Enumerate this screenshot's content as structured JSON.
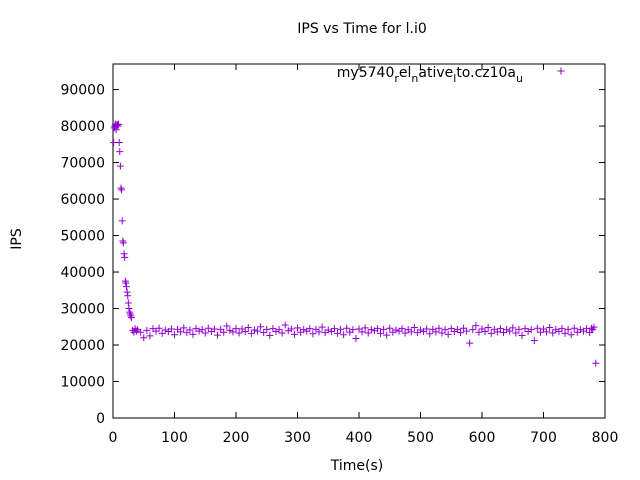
{
  "chart_data": {
    "type": "scatter",
    "title": "IPS vs Time for l.i0",
    "xlabel": "Time(s)",
    "ylabel": "IPS",
    "xlim": [
      0,
      800
    ],
    "ylim": [
      0,
      97000
    ],
    "x_ticks": [
      0,
      100,
      200,
      300,
      400,
      500,
      600,
      700,
      800
    ],
    "y_ticks": [
      0,
      10000,
      20000,
      30000,
      40000,
      50000,
      60000,
      70000,
      80000,
      90000
    ],
    "legend_placement": "top-right",
    "grid": false,
    "marker": "plus",
    "series": [
      {
        "name": "my5740_rel_native_lto.cz10a_u",
        "legend_parts": [
          {
            "text": "my5740",
            "sub": false
          },
          {
            "text": "r",
            "sub": true
          },
          {
            "text": "el",
            "sub": false
          },
          {
            "text": "n",
            "sub": true
          },
          {
            "text": "ative",
            "sub": false
          },
          {
            "text": "l",
            "sub": true
          },
          {
            "text": "to.cz10a",
            "sub": false
          },
          {
            "text": "u",
            "sub": true
          }
        ],
        "color": "#9400d3",
        "points": [
          [
            1,
            75500
          ],
          [
            2,
            79500
          ],
          [
            3,
            80000
          ],
          [
            4,
            80500
          ],
          [
            5,
            79000
          ],
          [
            6,
            80200
          ],
          [
            7,
            80400
          ],
          [
            8,
            80000
          ],
          [
            9,
            80500
          ],
          [
            10,
            75500
          ],
          [
            11,
            73000
          ],
          [
            12,
            69000
          ],
          [
            13,
            63000
          ],
          [
            14,
            62500
          ],
          [
            15,
            54000
          ],
          [
            16,
            48500
          ],
          [
            17,
            48000
          ],
          [
            18,
            45000
          ],
          [
            19,
            44000
          ],
          [
            20,
            37500
          ],
          [
            21,
            37000
          ],
          [
            22,
            36000
          ],
          [
            23,
            34500
          ],
          [
            24,
            33500
          ],
          [
            25,
            31500
          ],
          [
            26,
            30000
          ],
          [
            27,
            29000
          ],
          [
            28,
            28500
          ],
          [
            29,
            28000
          ],
          [
            30,
            27500
          ],
          [
            32,
            24000
          ],
          [
            34,
            23500
          ],
          [
            36,
            24500
          ],
          [
            38,
            23800
          ],
          [
            40,
            24200
          ],
          [
            45,
            23500
          ],
          [
            50,
            22000
          ],
          [
            55,
            24000
          ],
          [
            60,
            22500
          ],
          [
            65,
            24500
          ],
          [
            70,
            23800
          ],
          [
            75,
            24600
          ],
          [
            80,
            23200
          ],
          [
            85,
            24100
          ],
          [
            90,
            23700
          ],
          [
            95,
            24400
          ],
          [
            100,
            22800
          ],
          [
            105,
            24300
          ],
          [
            110,
            23600
          ],
          [
            115,
            24700
          ],
          [
            120,
            23400
          ],
          [
            125,
            24100
          ],
          [
            130,
            22900
          ],
          [
            135,
            24500
          ],
          [
            140,
            23800
          ],
          [
            145,
            24200
          ],
          [
            150,
            23300
          ],
          [
            155,
            24600
          ],
          [
            160,
            23700
          ],
          [
            165,
            24400
          ],
          [
            170,
            22700
          ],
          [
            175,
            24300
          ],
          [
            180,
            23500
          ],
          [
            185,
            25200
          ],
          [
            190,
            24000
          ],
          [
            195,
            23600
          ],
          [
            200,
            24500
          ],
          [
            205,
            23300
          ],
          [
            210,
            24400
          ],
          [
            215,
            23700
          ],
          [
            220,
            24800
          ],
          [
            225,
            23200
          ],
          [
            230,
            24100
          ],
          [
            235,
            23800
          ],
          [
            240,
            25000
          ],
          [
            245,
            23400
          ],
          [
            250,
            24300
          ],
          [
            255,
            22600
          ],
          [
            260,
            24500
          ],
          [
            265,
            23700
          ],
          [
            270,
            24200
          ],
          [
            275,
            23300
          ],
          [
            280,
            25500
          ],
          [
            285,
            23900
          ],
          [
            290,
            24400
          ],
          [
            295,
            22900
          ],
          [
            300,
            24700
          ],
          [
            305,
            23500
          ],
          [
            310,
            24200
          ],
          [
            315,
            23800
          ],
          [
            320,
            24500
          ],
          [
            325,
            23100
          ],
          [
            330,
            24300
          ],
          [
            335,
            23600
          ],
          [
            340,
            24900
          ],
          [
            345,
            23400
          ],
          [
            350,
            24100
          ],
          [
            355,
            23700
          ],
          [
            360,
            24500
          ],
          [
            365,
            23200
          ],
          [
            370,
            24300
          ],
          [
            375,
            22800
          ],
          [
            380,
            24600
          ],
          [
            385,
            23500
          ],
          [
            390,
            24200
          ],
          [
            395,
            21800
          ],
          [
            400,
            24400
          ],
          [
            405,
            23600
          ],
          [
            410,
            24700
          ],
          [
            415,
            23300
          ],
          [
            420,
            24200
          ],
          [
            425,
            23900
          ],
          [
            430,
            24500
          ],
          [
            435,
            23200
          ],
          [
            440,
            24300
          ],
          [
            445,
            22700
          ],
          [
            450,
            24600
          ],
          [
            455,
            23500
          ],
          [
            460,
            24100
          ],
          [
            465,
            23800
          ],
          [
            470,
            24500
          ],
          [
            475,
            23300
          ],
          [
            480,
            24200
          ],
          [
            485,
            23600
          ],
          [
            490,
            24800
          ],
          [
            495,
            23400
          ],
          [
            500,
            24100
          ],
          [
            505,
            23700
          ],
          [
            510,
            24400
          ],
          [
            515,
            23100
          ],
          [
            520,
            24300
          ],
          [
            525,
            23600
          ],
          [
            530,
            24600
          ],
          [
            535,
            23300
          ],
          [
            540,
            24200
          ],
          [
            545,
            22900
          ],
          [
            550,
            24500
          ],
          [
            555,
            23700
          ],
          [
            560,
            24300
          ],
          [
            565,
            23400
          ],
          [
            570,
            24600
          ],
          [
            575,
            23800
          ],
          [
            580,
            20500
          ],
          [
            585,
            24200
          ],
          [
            590,
            25300
          ],
          [
            595,
            23500
          ],
          [
            600,
            24400
          ],
          [
            605,
            23700
          ],
          [
            610,
            24800
          ],
          [
            615,
            23200
          ],
          [
            620,
            24300
          ],
          [
            625,
            23600
          ],
          [
            630,
            24500
          ],
          [
            635,
            23400
          ],
          [
            640,
            24200
          ],
          [
            645,
            23800
          ],
          [
            650,
            24700
          ],
          [
            655,
            23300
          ],
          [
            660,
            24300
          ],
          [
            665,
            22600
          ],
          [
            670,
            24500
          ],
          [
            675,
            23700
          ],
          [
            680,
            24200
          ],
          [
            685,
            21200
          ],
          [
            690,
            24600
          ],
          [
            695,
            23500
          ],
          [
            700,
            24400
          ],
          [
            705,
            23600
          ],
          [
            710,
            24800
          ],
          [
            715,
            23300
          ],
          [
            720,
            24200
          ],
          [
            725,
            23700
          ],
          [
            730,
            24500
          ],
          [
            735,
            23200
          ],
          [
            740,
            24300
          ],
          [
            745,
            22800
          ],
          [
            750,
            24600
          ],
          [
            755,
            23500
          ],
          [
            760,
            24200
          ],
          [
            765,
            23800
          ],
          [
            770,
            24500
          ],
          [
            775,
            23400
          ],
          [
            778,
            24600
          ],
          [
            780,
            24200
          ],
          [
            782,
            24900
          ],
          [
            785,
            15000
          ]
        ]
      }
    ]
  }
}
